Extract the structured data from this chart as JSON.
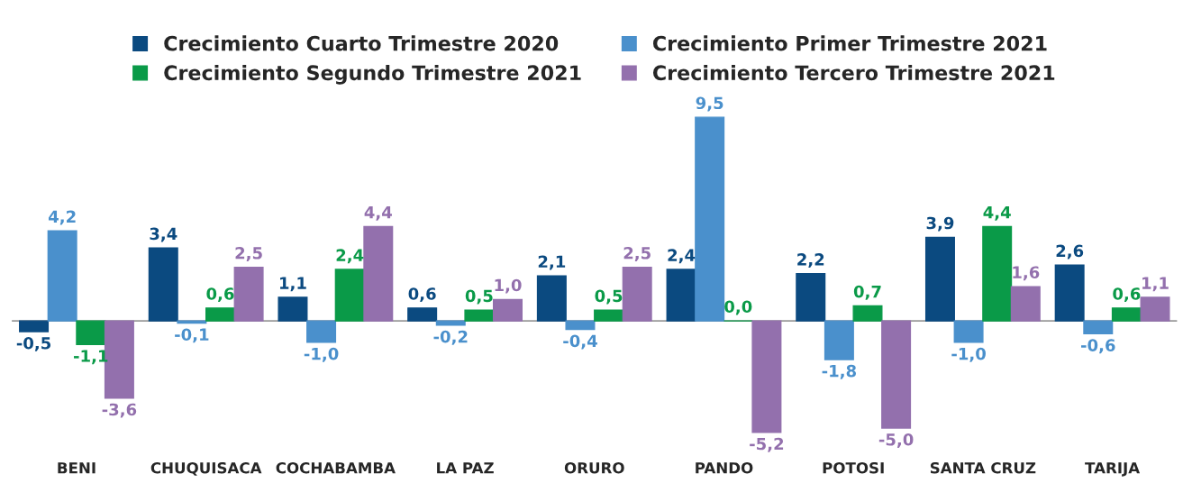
{
  "chart_data": {
    "type": "bar",
    "categories": [
      "BENI",
      "CHUQUISACA",
      "COCHABAMBA",
      "LA PAZ",
      "ORURO",
      "PANDO",
      "POTOSI",
      "SANTA CRUZ",
      "TARIJA"
    ],
    "series": [
      {
        "name": "Crecimiento Cuarto Trimestre 2020",
        "color": "#0b4a80",
        "values": [
          -0.5,
          3.4,
          1.1,
          0.6,
          2.1,
          2.4,
          2.2,
          3.9,
          2.6
        ],
        "value_labels": [
          "-0,5",
          "3,4",
          "1,1",
          "0,6",
          "2,1",
          "2,4",
          "2,2",
          "3,9",
          "2,6"
        ]
      },
      {
        "name": "Crecimiento Primer Trimestre 2021",
        "color": "#4a90cc",
        "values": [
          4.2,
          -0.1,
          -1.0,
          -0.2,
          -0.4,
          9.5,
          -1.8,
          -1.0,
          -0.6
        ],
        "value_labels": [
          "4,2",
          "-0,1",
          "-1,0",
          "-0,2",
          "-0,4",
          "9,5",
          "-1,8",
          "-1,0",
          "-0,6"
        ]
      },
      {
        "name": "Crecimiento Segundo Trimestre 2021",
        "color": "#0a9a48",
        "values": [
          -1.1,
          0.6,
          2.4,
          0.5,
          0.5,
          0.0,
          0.7,
          4.4,
          0.6
        ],
        "value_labels": [
          "-1,1",
          "0,6",
          "2,4",
          "0,5",
          "0,5",
          "0,0",
          "0,7",
          "4,4",
          "0,6"
        ]
      },
      {
        "name": "Crecimiento Tercero Trimestre 2021",
        "color": "#9370ad",
        "values": [
          -3.6,
          2.5,
          4.4,
          1.0,
          2.5,
          -5.2,
          -5.0,
          1.6,
          1.1
        ],
        "value_labels": [
          "-3,6",
          "2,5",
          "4,4",
          "1,0",
          "2,5",
          "-5,2",
          "-5,0",
          "1,6",
          "1,1"
        ]
      }
    ],
    "legend": "top",
    "grid": false
  }
}
